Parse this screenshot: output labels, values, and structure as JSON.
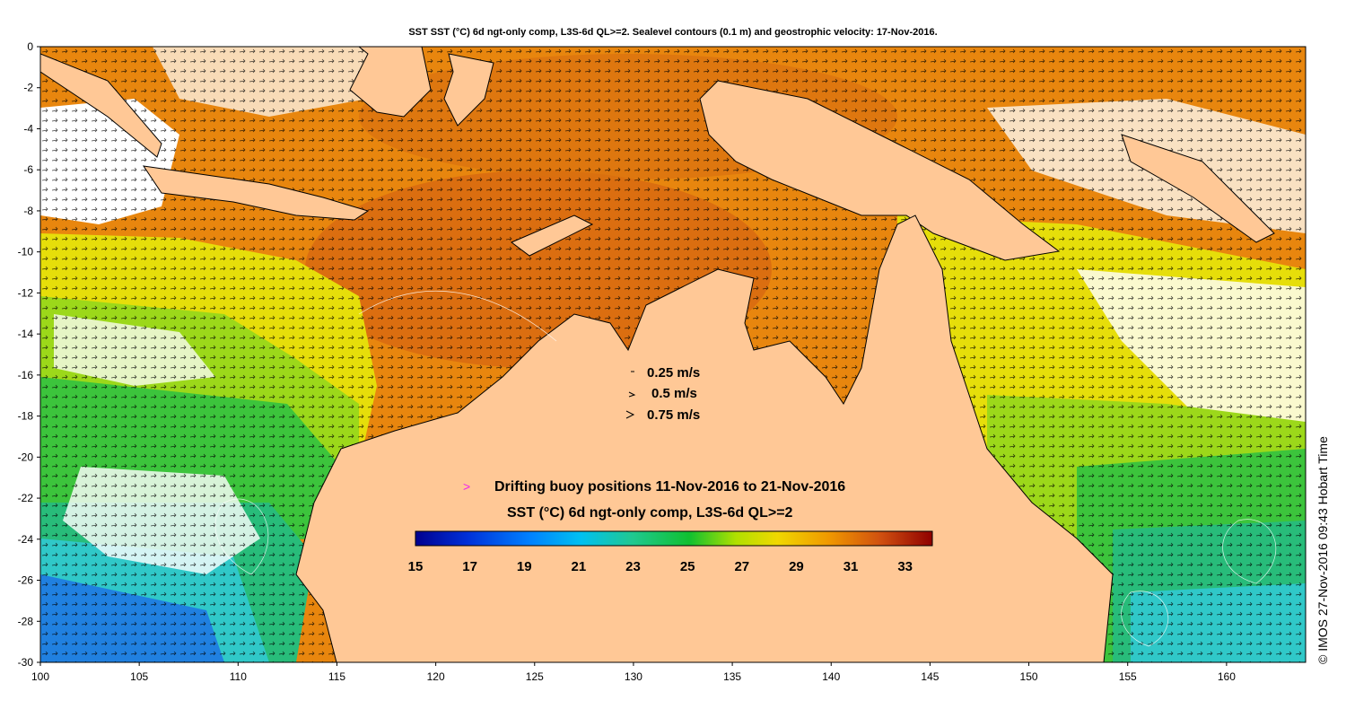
{
  "title": "SST SST (°C) 6d ngt-only comp, L3S-6d QL>=2. Sealevel contours (0.1 m) and geostrophic velocity: 17-Nov-2016.",
  "axes": {
    "lon": {
      "min": 100,
      "max": 164,
      "ticks": [
        100,
        105,
        110,
        115,
        120,
        125,
        130,
        135,
        140,
        145,
        150,
        155,
        160
      ]
    },
    "lat": {
      "min": -30,
      "max": 0,
      "ticks": [
        0,
        -2,
        -4,
        -6,
        -8,
        -10,
        -12,
        -14,
        -16,
        -18,
        -20,
        -22,
        -24,
        -26,
        -28,
        -30
      ]
    }
  },
  "velocity_legend": {
    "items": [
      "0.25 m/s",
      "0.5 m/s",
      "0.75 m/s"
    ]
  },
  "buoy_legend": {
    "text": "Drifting buoy positions 11-Nov-2016 to 21-Nov-2016",
    "marker": ">",
    "color": "#ee22ee"
  },
  "colorbar": {
    "title": "SST (°C) 6d ngt-only comp, L3S-6d QL>=2",
    "min": 15,
    "max": 34,
    "ticks": [
      15,
      17,
      19,
      21,
      23,
      25,
      27,
      29,
      31,
      33
    ],
    "colors": [
      "#00008f",
      "#0020c8",
      "#0060ff",
      "#00b4f0",
      "#1cc7a0",
      "#10c040",
      "#40d010",
      "#c0e000",
      "#f0d000",
      "#f0a000",
      "#e07010",
      "#c04010",
      "#8f0000"
    ]
  },
  "colors": {
    "land": "#ffc896",
    "ocean_warm": "#e8860e",
    "ocean_hot": "#d86a10",
    "ocean_yellow": "#e6de0a",
    "ocean_green": "#3cc43c",
    "ocean_cyan": "#30c8c8",
    "ocean_blue": "#2080e0",
    "missing": "#ffffff"
  },
  "credit": "© IMOS 27-Nov-2016 09:43 Hobart Time"
}
